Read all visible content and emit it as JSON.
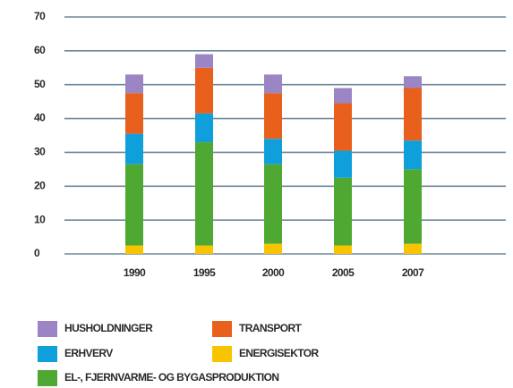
{
  "chart_data": {
    "type": "bar",
    "stacked": true,
    "categories": [
      "1990",
      "1995",
      "2000",
      "2005",
      "2007"
    ],
    "series": [
      {
        "name": "ENERGISEKTOR",
        "color": "#f8c400",
        "values": [
          2.5,
          2.5,
          3,
          2.5,
          3
        ]
      },
      {
        "name": "EL-, FJERNVARME- OG BYGASPRODUKTION",
        "color": "#4fa832",
        "values": [
          24,
          30.5,
          23.5,
          20,
          22
        ]
      },
      {
        "name": "ERHVERV",
        "color": "#0fa0dc",
        "values": [
          9,
          8.5,
          7.5,
          8,
          8.5
        ]
      },
      {
        "name": "TRANSPORT",
        "color": "#e8601c",
        "values": [
          12,
          13.5,
          13.5,
          14,
          15.5
        ]
      },
      {
        "name": "HUSHOLDNINGER",
        "color": "#9b85c4",
        "values": [
          5.5,
          4,
          5.5,
          4.5,
          3.5
        ]
      }
    ],
    "ylim": [
      0,
      70
    ],
    "yticks": [
      0,
      10,
      20,
      30,
      40,
      50,
      60,
      70
    ],
    "grid": true
  }
}
